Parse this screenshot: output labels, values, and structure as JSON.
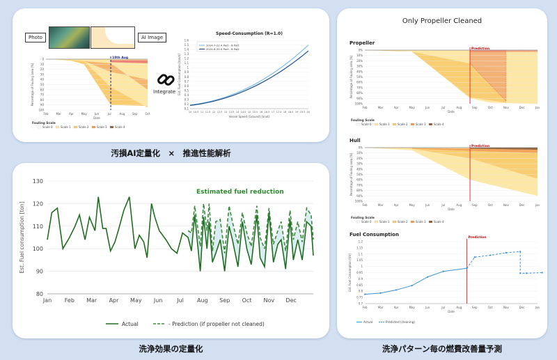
{
  "left_top": {
    "photo_label": "Photo",
    "ai_image_label": "AI Image",
    "integrate_label": "Integrate",
    "fouling_chart": {
      "ylabel": "Percentage of Fouling area [%]",
      "xlabel": "Date",
      "months": [
        "Feb",
        "Mar",
        "Apr",
        "May",
        "Jun",
        "Jul",
        "Aug",
        "Sep",
        "Oct"
      ],
      "y_ticks": [
        "0",
        "10",
        "20",
        "30",
        "40",
        "50",
        "60",
        "70",
        "80",
        "90",
        "100"
      ],
      "marker_label": "10th Aug",
      "legend_title": "Fouling Scale",
      "legend": [
        "Scale 0",
        "Scale 1",
        "Scale 2",
        "Scale 3",
        "Scale 4"
      ]
    },
    "speed_chart": {
      "title": "Speed-Consumption (R=1.0)",
      "ylabel": "Est. Fuel Consumption [ton/d]",
      "xlabel": "Vessel Speed (Ground) [knot]",
      "legend": [
        "2024-7-22 A Port - B Port",
        "2024-6-20 A Port - B Port"
      ],
      "x_ticks": [
        "10",
        "10.5",
        "11",
        "11.5",
        "12",
        "12.5",
        "13",
        "13.5",
        "14",
        "14.5",
        "15",
        "15.5",
        "16",
        "16.5",
        "17",
        "17.5",
        "18",
        "18.5",
        "19",
        "19.5",
        "20"
      ],
      "y_ticks": [
        "0.1",
        "0.2",
        "0.3",
        "0.4",
        "0.5",
        "0.6",
        "0.7",
        "0.8",
        "0.9",
        "1",
        "1.1",
        "1.2",
        "1.3",
        "1.4",
        "1.5",
        "1.6"
      ]
    },
    "caption": "汚損AI定量化　×　推進性能解析"
  },
  "chart_data": [
    {
      "type": "line",
      "id": "main-fuel",
      "title": "Estimated fuel reduction",
      "ylabel": "Est. Fuel consumption [ton]",
      "ylim": [
        80,
        130
      ],
      "y_ticks": [
        "80",
        "90",
        "100",
        "110",
        "120",
        "130"
      ],
      "x_ticks": [
        "Jan",
        "Feb",
        "Mar",
        "Apr",
        "May",
        "Jun",
        "Jul",
        "Aug",
        "Sep",
        "Oct",
        "Nov",
        "Dec"
      ],
      "xlim": [
        0,
        12
      ],
      "series": [
        {
          "name": "Actual",
          "x": [
            0,
            0.2,
            0.45,
            0.7,
            1.0,
            1.25,
            1.45,
            1.7,
            1.9,
            2.15,
            2.3,
            2.5,
            2.65,
            2.85,
            3.05,
            3.2,
            3.45,
            3.7,
            3.95,
            4.15,
            4.35,
            4.5,
            4.7,
            4.85,
            5.05,
            5.35,
            5.6,
            5.85,
            6.1,
            6.35,
            6.5,
            6.65,
            6.9,
            7.05,
            7.2,
            7.3,
            7.45,
            7.6,
            7.8,
            8.0,
            8.2,
            8.35,
            8.6,
            8.8,
            9.0,
            9.2,
            9.45,
            9.6,
            9.8,
            10.0,
            10.2,
            10.4,
            10.55,
            10.75,
            10.95,
            11.1,
            11.3,
            11.5,
            11.7,
            11.9,
            12.0
          ],
          "values": [
            104,
            116,
            118,
            100,
            105,
            110,
            115,
            104,
            114,
            108,
            123,
            109,
            109,
            99,
            103,
            108,
            117,
            123,
            100,
            106,
            103,
            96,
            120,
            114,
            108,
            104,
            100,
            98,
            107,
            105,
            99,
            115,
            90,
            114,
            100,
            112,
            94,
            98,
            104,
            90,
            110,
            104,
            92,
            112,
            100,
            93,
            115,
            96,
            92,
            116,
            94,
            102,
            104,
            91,
            113,
            95,
            104,
            95,
            112,
            110,
            97
          ]
        },
        {
          "name": "- Prediction (if propeller not cleaned)",
          "x": [
            6.35,
            6.5,
            6.65,
            6.9,
            7.05,
            7.2,
            7.3,
            7.45,
            7.6,
            7.8,
            8.0,
            8.2,
            8.35,
            8.6,
            8.8,
            9.0,
            9.2,
            9.45,
            9.6,
            9.8,
            10.0,
            10.2,
            10.4,
            10.55,
            10.75,
            10.95,
            11.1,
            11.3,
            11.5,
            11.7,
            11.9,
            12.0
          ],
          "values": [
            108,
            107,
            119,
            101,
            120,
            108,
            120,
            99,
            112,
            113,
            98,
            119,
            112,
            102,
            116,
            107,
            101,
            119,
            105,
            100,
            118,
            102,
            108,
            112,
            99,
            117,
            104,
            112,
            103,
            118,
            115,
            104
          ]
        }
      ],
      "legend": [
        "Actual",
        "- Prediction (if propeller not cleaned)"
      ],
      "colors": {
        "actual": "#1e6e1e",
        "fill": "#d9ecf2"
      }
    },
    {
      "type": "area",
      "id": "propeller-fouling",
      "title": "Propeller",
      "ylabel": "Percentage of Fouling area [%]",
      "xlabel": "Date",
      "x_ticks": [
        "Feb",
        "Mar",
        "Apr",
        "May",
        "Jun",
        "Jul",
        "Aug",
        "Sep",
        "Oct",
        "Nov",
        "Dec",
        "Jan"
      ],
      "y_ticks": [
        "0%",
        "10%",
        "20%",
        "30%",
        "40%",
        "50%",
        "60%",
        "70%",
        "80%",
        "90%",
        "100%"
      ],
      "prediction_label": "Prediction",
      "legend_title": "Fouling Scale",
      "legend": [
        "Scale 0",
        "Scale 1",
        "Scale 2",
        "Scale 3",
        "Scale 4"
      ]
    },
    {
      "type": "area",
      "id": "hull-fouling",
      "title": "Hull",
      "ylabel": "Percentage of Fouling area [%]",
      "xlabel": "Date",
      "x_ticks": [
        "Feb",
        "Mar",
        "Apr",
        "May",
        "Jun",
        "Jul",
        "Aug",
        "Sep",
        "Oct",
        "Nov",
        "Dec",
        "Jan"
      ],
      "y_ticks": [
        "0%",
        "10%",
        "20%",
        "30%",
        "40%",
        "50%",
        "60%",
        "70%",
        "80%",
        "90%",
        "100%"
      ],
      "prediction_label": "Prediction",
      "legend_title": "Fouling Scale",
      "legend": [
        "Scale 0",
        "Scale 1",
        "Scale 2",
        "Scale 3",
        "Scale 4"
      ]
    },
    {
      "type": "line",
      "id": "fuel-consumption-small",
      "title": "Fuel Consumption",
      "ylabel": "Est. Fuel Consumption [t/d]",
      "xlabel": "Date",
      "ylim": [
        0.7,
        1.2
      ],
      "y_ticks": [
        "0.7",
        "0.75",
        "0.8",
        "0.85",
        "0.9",
        "0.95",
        "1",
        "1.05",
        "1.1",
        "1.15",
        "1.2"
      ],
      "x_ticks": [
        "Feb",
        "Mar",
        "Apr",
        "May",
        "Jun",
        "Jul",
        "Aug",
        "Sep",
        "Oct",
        "Nov",
        "Dec",
        "Jan"
      ],
      "prediction_label": "Prediction",
      "series": [
        {
          "name": "Actual",
          "x": [
            0,
            1,
            2,
            3,
            4,
            5,
            6.5
          ],
          "values": [
            0.775,
            0.785,
            0.81,
            0.845,
            0.915,
            0.96,
            0.985
          ]
        },
        {
          "name": "Predicted (cleaning)",
          "x": [
            6.5,
            7,
            8,
            9,
            9.9,
            9.9,
            10.3,
            11.3
          ],
          "values": [
            0.985,
            1.075,
            1.09,
            1.11,
            1.12,
            0.945,
            0.945,
            0.95
          ]
        }
      ],
      "legend": [
        "Actual",
        "Predicted (cleaning)"
      ]
    }
  ],
  "left_bottom": {
    "caption": "洗浄効果の定量化"
  },
  "right": {
    "title": "Only Propeller Cleaned",
    "caption": "洗浄パターン毎の燃費改善量予測"
  }
}
